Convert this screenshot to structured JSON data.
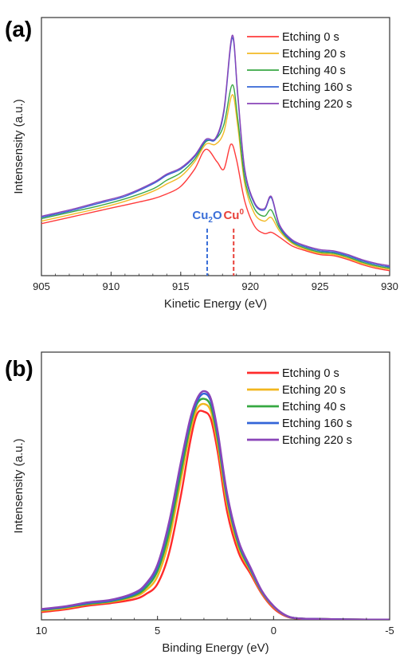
{
  "chart_data": [
    {
      "panel_label": "(a)",
      "type": "line",
      "xlabel": "Kinetic Energy (eV)",
      "ylabel": "Intensensity (a.u.)",
      "xlim": [
        905,
        930
      ],
      "ylim": [
        0,
        1
      ],
      "xticks": [
        "905",
        "910",
        "915",
        "920",
        "925",
        "930"
      ],
      "legend_position": "top-right",
      "annotations": [
        {
          "text": "Cu",
          "sub": "2",
          "tail": "O",
          "x": 916.9,
          "color": "#3b6fd8"
        },
        {
          "text": "Cu",
          "sup": "0",
          "x": 918.8,
          "color": "#e8413a"
        }
      ],
      "series": [
        {
          "name": "Etching 0 s",
          "color": "#ff3b3b",
          "x": [
            905,
            907,
            909,
            911,
            913,
            914,
            915,
            916,
            916.8,
            917.6,
            918.1,
            918.6,
            919.0,
            919.6,
            920.3,
            921.0,
            921.5,
            922.1,
            923,
            924,
            925,
            926,
            927,
            928,
            929,
            930
          ],
          "y": [
            0.21,
            0.235,
            0.26,
            0.285,
            0.31,
            0.33,
            0.36,
            0.43,
            0.51,
            0.46,
            0.43,
            0.53,
            0.47,
            0.3,
            0.2,
            0.17,
            0.175,
            0.155,
            0.12,
            0.1,
            0.085,
            0.08,
            0.065,
            0.045,
            0.03,
            0.02
          ]
        },
        {
          "name": "Etching 20 s",
          "color": "#f2b924",
          "x": [
            905,
            907,
            909,
            911,
            913,
            914,
            915,
            916,
            916.8,
            917.5,
            918.1,
            918.7,
            919.1,
            919.6,
            920.3,
            921.0,
            921.5,
            922.1,
            923,
            924,
            925,
            926,
            927,
            928,
            929,
            930
          ],
          "y": [
            0.22,
            0.245,
            0.27,
            0.3,
            0.34,
            0.37,
            0.4,
            0.46,
            0.53,
            0.53,
            0.58,
            0.73,
            0.6,
            0.37,
            0.25,
            0.22,
            0.235,
            0.18,
            0.13,
            0.105,
            0.09,
            0.085,
            0.07,
            0.05,
            0.035,
            0.025
          ]
        },
        {
          "name": "Etching 40 s",
          "color": "#3aa845",
          "x": [
            905,
            907,
            909,
            911,
            913,
            914,
            915,
            916,
            916.8,
            917.5,
            918.1,
            918.7,
            919.1,
            919.6,
            920.3,
            921.0,
            921.5,
            922.1,
            923,
            924,
            925,
            926,
            927,
            928,
            929,
            930
          ],
          "y": [
            0.23,
            0.255,
            0.28,
            0.31,
            0.35,
            0.385,
            0.415,
            0.47,
            0.54,
            0.55,
            0.61,
            0.77,
            0.63,
            0.39,
            0.27,
            0.24,
            0.265,
            0.19,
            0.135,
            0.11,
            0.095,
            0.09,
            0.075,
            0.055,
            0.04,
            0.03
          ]
        },
        {
          "name": "Etching 160 s",
          "color": "#3566d6",
          "x": [
            905,
            907,
            909,
            911,
            913,
            914,
            915,
            916,
            916.8,
            917.5,
            918.1,
            918.7,
            919.1,
            919.6,
            920.3,
            921.0,
            921.5,
            922.1,
            923,
            924,
            925,
            926,
            927,
            928,
            929,
            930
          ],
          "y": [
            0.235,
            0.26,
            0.29,
            0.32,
            0.37,
            0.405,
            0.43,
            0.48,
            0.545,
            0.55,
            0.66,
            0.96,
            0.72,
            0.42,
            0.29,
            0.265,
            0.315,
            0.2,
            0.14,
            0.115,
            0.1,
            0.095,
            0.08,
            0.06,
            0.045,
            0.035
          ]
        },
        {
          "name": "Etching 220 s",
          "color": "#8a45b8",
          "x": [
            905,
            907,
            909,
            911,
            913,
            914,
            915,
            916,
            916.8,
            917.5,
            918.1,
            918.7,
            919.1,
            919.6,
            920.3,
            921.0,
            921.5,
            922.1,
            923,
            924,
            925,
            926,
            927,
            928,
            929,
            930
          ],
          "y": [
            0.24,
            0.265,
            0.295,
            0.325,
            0.375,
            0.41,
            0.435,
            0.485,
            0.55,
            0.555,
            0.67,
            0.97,
            0.73,
            0.43,
            0.295,
            0.27,
            0.32,
            0.205,
            0.145,
            0.12,
            0.105,
            0.1,
            0.085,
            0.065,
            0.05,
            0.04
          ]
        }
      ]
    },
    {
      "panel_label": "(b)",
      "type": "line",
      "xlabel": "Binding Energy (eV)",
      "ylabel": "Intensensity (a.u.)",
      "xlim": [
        10,
        -5
      ],
      "ylim": [
        0,
        1
      ],
      "xticks": [
        "10",
        "5",
        "0",
        "-5"
      ],
      "legend_position": "top-right",
      "series": [
        {
          "name": "Etching 0 s",
          "color": "#ff2b2b",
          "x": [
            10,
            9,
            8,
            7,
            6,
            5.5,
            5,
            4.5,
            4,
            3.6,
            3.3,
            3.0,
            2.7,
            2.4,
            2.0,
            1.5,
            1.0,
            0.5,
            0,
            -0.5,
            -1,
            -2,
            -3,
            -4,
            -5
          ],
          "y": [
            0.03,
            0.04,
            0.055,
            0.065,
            0.08,
            0.1,
            0.14,
            0.26,
            0.48,
            0.69,
            0.8,
            0.81,
            0.78,
            0.65,
            0.42,
            0.26,
            0.18,
            0.1,
            0.045,
            0.015,
            0.005,
            0.003,
            0.002,
            0.001,
            0.001
          ]
        },
        {
          "name": "Etching 20 s",
          "color": "#f2b61f",
          "x": [
            10,
            9,
            8,
            7,
            6,
            5.5,
            5,
            4.5,
            4,
            3.6,
            3.3,
            3.0,
            2.7,
            2.4,
            2.0,
            1.5,
            1.0,
            0.5,
            0,
            -0.5,
            -1,
            -2,
            -3,
            -4,
            -5
          ],
          "y": [
            0.035,
            0.045,
            0.06,
            0.07,
            0.09,
            0.115,
            0.17,
            0.31,
            0.54,
            0.73,
            0.82,
            0.84,
            0.81,
            0.68,
            0.45,
            0.28,
            0.19,
            0.105,
            0.05,
            0.017,
            0.006,
            0.003,
            0.002,
            0.001,
            0.001
          ]
        },
        {
          "name": "Etching 40 s",
          "color": "#36a842",
          "x": [
            10,
            9,
            8,
            7,
            6,
            5.5,
            5,
            4.5,
            4,
            3.6,
            3.3,
            3.0,
            2.7,
            2.4,
            2.0,
            1.5,
            1.0,
            0.5,
            0,
            -0.5,
            -1,
            -2,
            -3,
            -4,
            -5
          ],
          "y": [
            0.038,
            0.048,
            0.062,
            0.072,
            0.095,
            0.125,
            0.19,
            0.34,
            0.57,
            0.75,
            0.84,
            0.86,
            0.83,
            0.7,
            0.47,
            0.29,
            0.195,
            0.108,
            0.052,
            0.018,
            0.006,
            0.003,
            0.002,
            0.001,
            0.001
          ]
        },
        {
          "name": "Etching 160 s",
          "color": "#3364d8",
          "x": [
            10,
            9,
            8,
            7,
            6,
            5.5,
            5,
            4.5,
            4,
            3.6,
            3.3,
            3.0,
            2.7,
            2.4,
            2.0,
            1.5,
            1.0,
            0.5,
            0,
            -0.5,
            -1,
            -2,
            -3,
            -4,
            -5
          ],
          "y": [
            0.04,
            0.05,
            0.065,
            0.075,
            0.1,
            0.135,
            0.205,
            0.37,
            0.6,
            0.77,
            0.85,
            0.88,
            0.85,
            0.72,
            0.48,
            0.3,
            0.2,
            0.11,
            0.053,
            0.018,
            0.006,
            0.003,
            0.002,
            0.001,
            0.001
          ]
        },
        {
          "name": "Etching 220 s",
          "color": "#8a45b8",
          "x": [
            10,
            9,
            8,
            7,
            6,
            5.5,
            5,
            4.5,
            4,
            3.6,
            3.3,
            3.0,
            2.7,
            2.4,
            2.0,
            1.5,
            1.0,
            0.5,
            0,
            -0.5,
            -1,
            -2,
            -3,
            -4,
            -5
          ],
          "y": [
            0.042,
            0.052,
            0.068,
            0.078,
            0.105,
            0.14,
            0.215,
            0.38,
            0.61,
            0.78,
            0.86,
            0.89,
            0.86,
            0.73,
            0.49,
            0.305,
            0.205,
            0.112,
            0.054,
            0.019,
            0.006,
            0.003,
            0.002,
            0.001,
            0.001
          ]
        }
      ]
    }
  ]
}
